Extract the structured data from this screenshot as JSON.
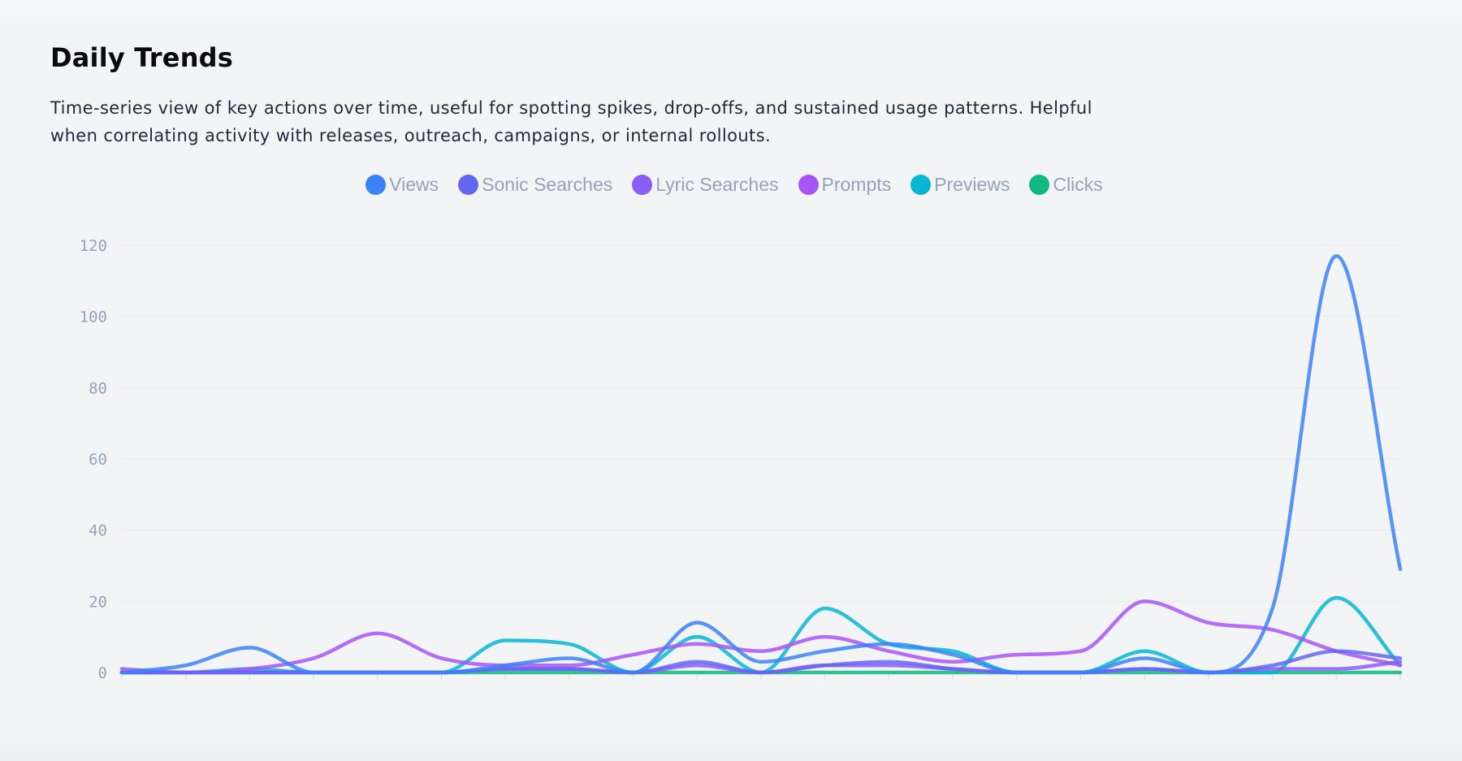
{
  "header": {
    "title": "Daily Trends",
    "description": "Time-series view of key actions over time, useful for spotting spikes, drop-offs, and sustained usage patterns. Helpful when correlating activity with releases, outreach, campaigns, or internal rollouts."
  },
  "chart_data": {
    "type": "line",
    "title": "",
    "xlabel": "",
    "ylabel": "",
    "ylim": [
      0,
      120
    ],
    "yticks": [
      "0",
      "20",
      "40",
      "60",
      "80",
      "100",
      "120"
    ],
    "x_points": 21,
    "grid": "horizontal",
    "legend_position": "top",
    "interpolation": "monotone",
    "series": [
      {
        "name": "Views",
        "color": "#3b82f6",
        "values": [
          0,
          2,
          7,
          0,
          0,
          0,
          2,
          4,
          0,
          14,
          3,
          6,
          8,
          5,
          0,
          0,
          4,
          0,
          18,
          117,
          29
        ]
      },
      {
        "name": "Sonic Searches",
        "color": "#6366f1",
        "values": [
          0,
          0,
          0,
          0,
          0,
          0,
          1,
          1,
          0,
          3,
          0,
          2,
          3,
          1,
          0,
          0,
          1,
          0,
          2,
          6,
          4
        ]
      },
      {
        "name": "Lyric Searches",
        "color": "#8b5cf6",
        "values": [
          0,
          0,
          0,
          0,
          0,
          0,
          1,
          1,
          0,
          2,
          0,
          2,
          2,
          1,
          0,
          0,
          1,
          0,
          1,
          1,
          3
        ]
      },
      {
        "name": "Prompts",
        "color": "#a855f7",
        "values": [
          1,
          0,
          1,
          4,
          11,
          4,
          2,
          2,
          5,
          8,
          6,
          10,
          6,
          3,
          5,
          6,
          20,
          14,
          12,
          6,
          2
        ]
      },
      {
        "name": "Previews",
        "color": "#06b6d4",
        "values": [
          0,
          0,
          1,
          0,
          0,
          0,
          9,
          8,
          0,
          10,
          0,
          18,
          8,
          6,
          0,
          0,
          6,
          0,
          0,
          21,
          2
        ]
      },
      {
        "name": "Clicks",
        "color": "#10b981",
        "values": [
          0,
          0,
          0,
          0,
          0,
          0,
          0,
          0,
          0,
          0,
          0,
          0,
          0,
          0,
          0,
          0,
          0,
          0,
          0,
          0,
          0
        ]
      }
    ]
  }
}
